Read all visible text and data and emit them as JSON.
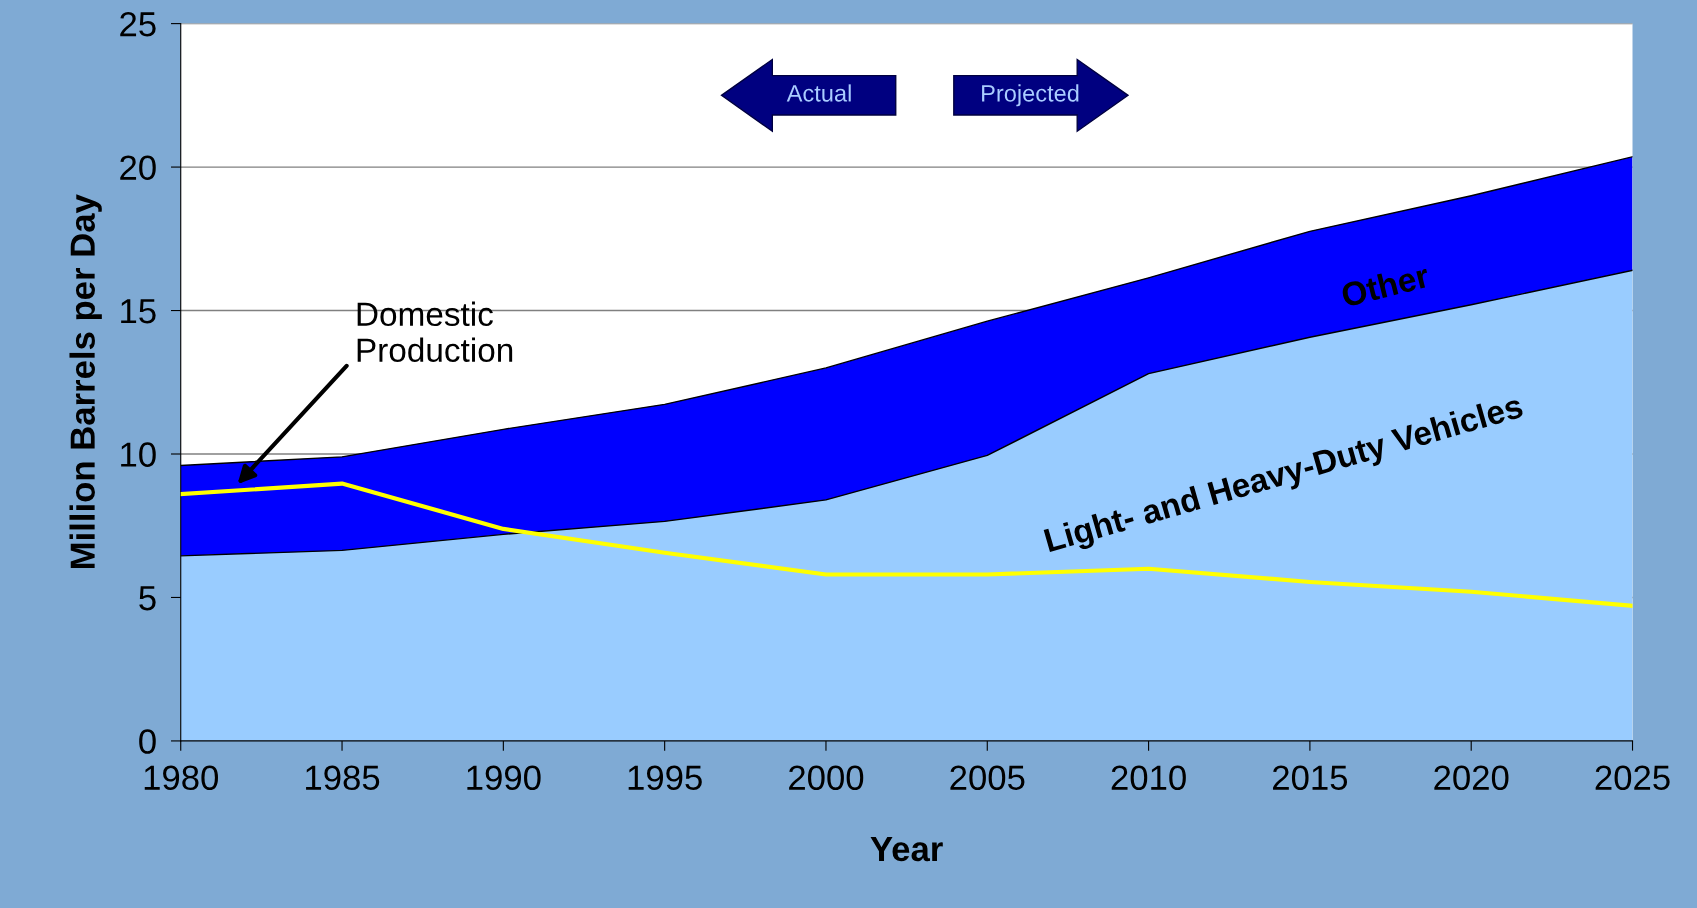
{
  "chart_data": {
    "type": "area",
    "stacked": true,
    "xlabel": "Year",
    "ylabel": "Million Barrels per Day",
    "x": [
      1980,
      1985,
      1990,
      1995,
      2000,
      2005,
      2010,
      2015,
      2020,
      2025
    ],
    "series": [
      {
        "name": "Light- and Heavy-Duty Vehicles",
        "color": "#99ccff",
        "values": [
          6.45,
          6.64,
          7.2,
          7.65,
          8.4,
          9.95,
          12.8,
          14.07,
          15.2,
          16.4
        ]
      },
      {
        "name": "Other",
        "color": "#0000ff",
        "values": [
          3.15,
          3.26,
          3.66,
          4.08,
          4.6,
          4.68,
          3.34,
          3.69,
          3.8,
          3.96
        ]
      },
      {
        "name": "Domestic Production",
        "type": "line",
        "color": "#ffff00",
        "values": [
          8.6,
          8.97,
          7.39,
          6.56,
          5.8,
          5.8,
          6.0,
          5.54,
          5.2,
          4.71
        ]
      }
    ],
    "annotations": [
      "Actual",
      "Projected"
    ],
    "xlim": [
      1980,
      2025
    ],
    "ylim": [
      0,
      25
    ],
    "xticks": [
      1980,
      1985,
      1990,
      1995,
      2000,
      2005,
      2010,
      2015,
      2020,
      2025
    ],
    "yticks": [
      0,
      5,
      10,
      15,
      20,
      25
    ],
    "grid": "y",
    "legend": false
  }
}
